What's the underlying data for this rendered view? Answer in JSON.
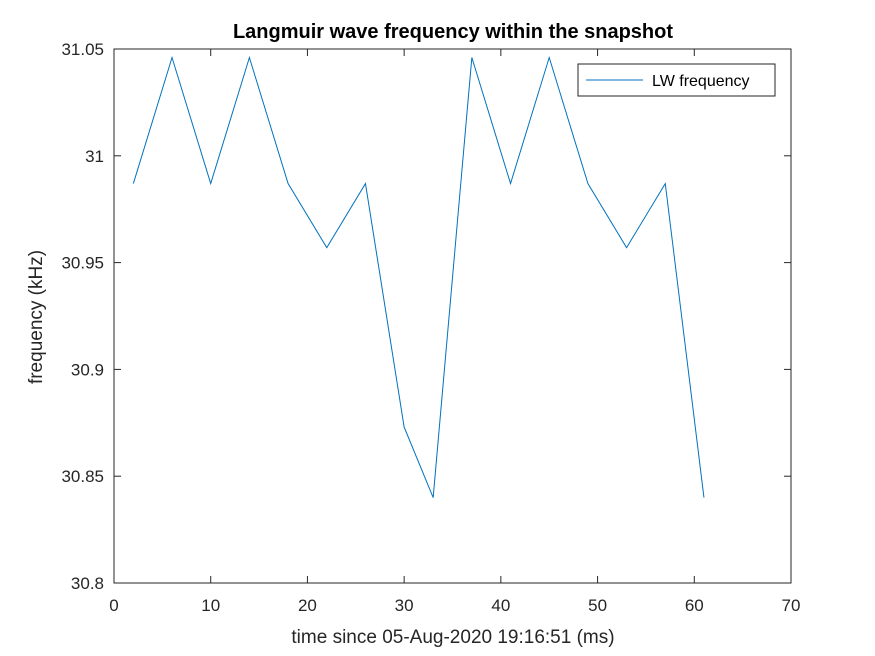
{
  "chart_data": {
    "type": "line",
    "title": "Langmuir wave frequency within the snapshot",
    "xlabel": "time since 05-Aug-2020 19:16:51 (ms)",
    "ylabel": "frequency (kHz)",
    "xlim": [
      0,
      70
    ],
    "ylim": [
      30.8,
      31.05
    ],
    "xticks": [
      0,
      10,
      20,
      30,
      40,
      50,
      60,
      70
    ],
    "yticks": [
      30.8,
      30.85,
      30.9,
      30.95,
      31,
      31.05
    ],
    "xtick_labels": [
      "0",
      "10",
      "20",
      "30",
      "40",
      "50",
      "60",
      "70"
    ],
    "ytick_labels": [
      "30.8",
      "30.85",
      "30.9",
      "30.95",
      "31",
      "31.05"
    ],
    "grid": false,
    "legend_position": "top-right",
    "series": [
      {
        "name": "LW frequency",
        "color": "#0072bd",
        "x": [
          2,
          6,
          10,
          14,
          18,
          22,
          26,
          30,
          33,
          37,
          41,
          45,
          49,
          53,
          57,
          61
        ],
        "y": [
          30.987,
          31.046,
          30.987,
          31.046,
          30.987,
          30.957,
          30.987,
          30.873,
          30.84,
          31.046,
          30.987,
          31.046,
          30.987,
          30.957,
          30.987,
          30.84
        ]
      }
    ]
  }
}
